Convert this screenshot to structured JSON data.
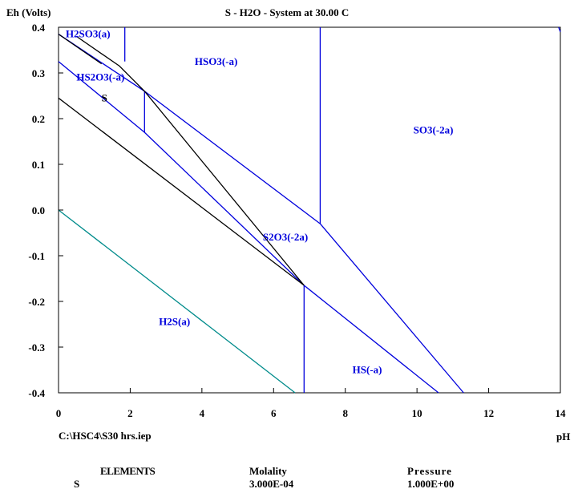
{
  "chart_data": {
    "type": "line",
    "title": "S - H2O - System at 30.00 C",
    "ylabel": "Eh (Volts)",
    "xlabel": "pH",
    "xlim": [
      0,
      14
    ],
    "ylim": [
      -0.4,
      0.4
    ],
    "x_ticks": [
      {
        "value": 0,
        "label": "0"
      },
      {
        "value": 2,
        "label": "2"
      },
      {
        "value": 4,
        "label": "4"
      },
      {
        "value": 6,
        "label": "6"
      },
      {
        "value": 8,
        "label": "8"
      },
      {
        "value": 10,
        "label": "10"
      },
      {
        "value": 12,
        "label": "12"
      },
      {
        "value": 14,
        "label": "14"
      }
    ],
    "y_ticks": [
      {
        "value": 0.4,
        "label": "0.4"
      },
      {
        "value": 0.3,
        "label": "0.3"
      },
      {
        "value": 0.2,
        "label": "0.2"
      },
      {
        "value": 0.1,
        "label": "0.1"
      },
      {
        "value": 0.0,
        "label": "0.0"
      },
      {
        "value": -0.1,
        "label": "-0.1"
      },
      {
        "value": -0.2,
        "label": "-0.2"
      },
      {
        "value": -0.3,
        "label": "-0.3"
      },
      {
        "value": -0.4,
        "label": "-0.4"
      }
    ],
    "colors": {
      "blue": "#0000dd",
      "black": "#000000",
      "teal": "#008b8b"
    },
    "lines": [
      {
        "color": "blue",
        "points": [
          [
            0,
            0.385
          ],
          [
            2.4,
            0.26
          ],
          [
            7.3,
            -0.03
          ]
        ]
      },
      {
        "color": "blue",
        "points": [
          [
            7.3,
            -0.03
          ],
          [
            11.3,
            -0.4
          ]
        ]
      },
      {
        "color": "blue",
        "points": [
          [
            7.3,
            0.4
          ],
          [
            7.3,
            -0.03
          ]
        ]
      },
      {
        "color": "blue",
        "points": [
          [
            1.85,
            0.4
          ],
          [
            1.85,
            0.325
          ]
        ]
      },
      {
        "color": "blue",
        "points": [
          [
            0,
            0.325
          ],
          [
            2.4,
            0.17
          ],
          [
            6.85,
            -0.165
          ]
        ]
      },
      {
        "color": "blue",
        "points": [
          [
            2.4,
            0.26
          ],
          [
            2.4,
            0.17
          ]
        ]
      },
      {
        "color": "blue",
        "points": [
          [
            6.85,
            -0.165
          ],
          [
            10.6,
            -0.4
          ]
        ]
      },
      {
        "color": "blue",
        "points": [
          [
            6.85,
            -0.165
          ],
          [
            6.85,
            -0.4
          ]
        ]
      },
      {
        "color": "blue",
        "points": [
          [
            13.95,
            0.4
          ],
          [
            14,
            0.39
          ]
        ]
      },
      {
        "color": "black",
        "points": [
          [
            0,
            0.385
          ],
          [
            1.2,
            0.32
          ]
        ]
      },
      {
        "color": "black",
        "points": [
          [
            0.5,
            0.38
          ],
          [
            1.7,
            0.315
          ],
          [
            2.4,
            0.26
          ],
          [
            6.85,
            -0.165
          ]
        ]
      },
      {
        "color": "black",
        "points": [
          [
            0,
            0.245
          ],
          [
            6.85,
            -0.165
          ]
        ]
      },
      {
        "color": "teal",
        "points": [
          [
            0,
            0.0
          ],
          [
            6.6,
            -0.4
          ]
        ]
      }
    ],
    "region_labels": [
      {
        "text": "H2SO3(a)",
        "x": 0.2,
        "y": 0.385,
        "color": "blue"
      },
      {
        "text": "HSO3(-a)",
        "x": 3.8,
        "y": 0.325,
        "color": "blue"
      },
      {
        "text": "HS2O3(-a)",
        "x": 0.5,
        "y": 0.29,
        "color": "blue"
      },
      {
        "text": "S",
        "x": 1.2,
        "y": 0.245,
        "color": "black"
      },
      {
        "text": "SO3(-2a)",
        "x": 9.9,
        "y": 0.175,
        "color": "blue"
      },
      {
        "text": "S2O3(-2a)",
        "x": 5.7,
        "y": -0.06,
        "color": "blue"
      },
      {
        "text": "H2S(a)",
        "x": 2.8,
        "y": -0.245,
        "color": "blue"
      },
      {
        "text": "HS(-a)",
        "x": 8.2,
        "y": -0.35,
        "color": "blue"
      }
    ]
  },
  "footer": {
    "filepath": "C:\\HSC4\\S30 hrs.iep",
    "elements_header": "ELEMENTS",
    "molality_header": "Molality",
    "pressure_header": "Pressure",
    "element": "S",
    "molality": "3.000E-04",
    "pressure": "1.000E+00"
  }
}
